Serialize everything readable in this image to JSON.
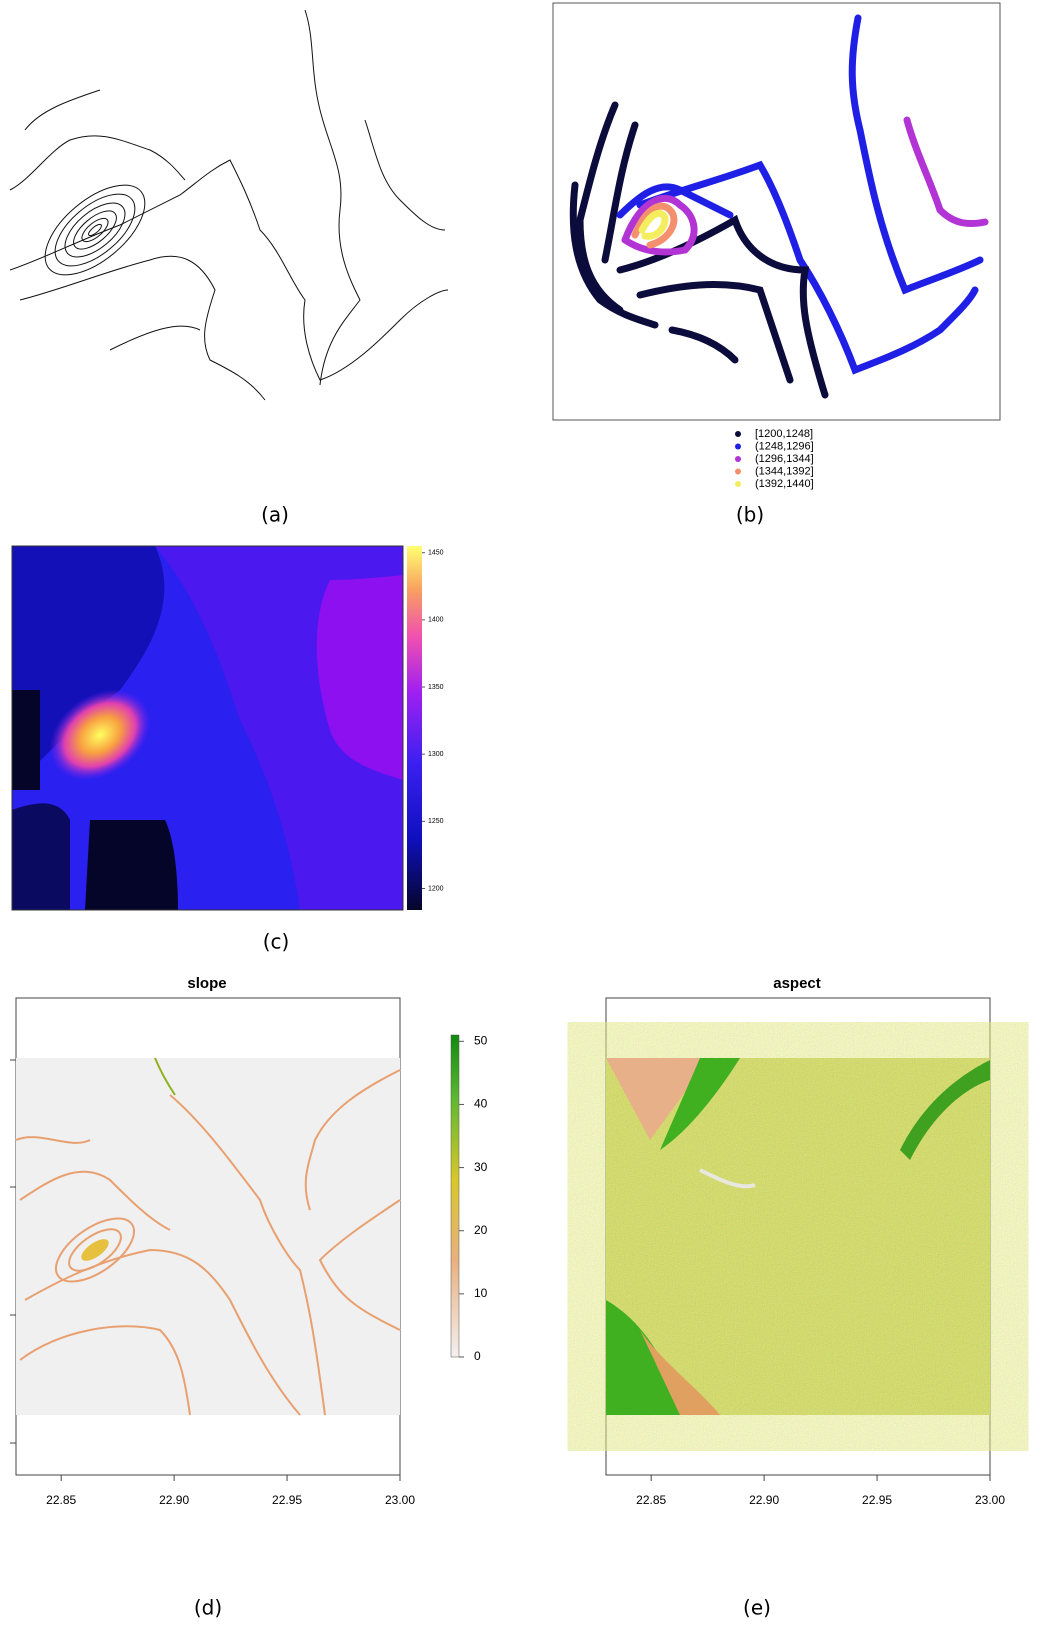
{
  "panels": [
    {
      "label": "(a)"
    },
    {
      "label": "(b)",
      "legend": [
        "[1200,1248]",
        "(1248,1296]",
        "(1296,1344]",
        "(1344,1392]",
        "(1392,1440]"
      ],
      "colors": [
        "#0b0b3c",
        "#1f1fe6",
        "#b234d4",
        "#f4906e",
        "#f4ee5e"
      ]
    },
    {
      "label": "(c)",
      "colorbar": {
        "range": [
          1184,
          1455
        ],
        "ticks": [
          1200,
          1250,
          1300,
          1350,
          1400,
          1450
        ]
      }
    },
    {
      "label": "(d)",
      "title": "slope",
      "xlim": [
        22.83,
        23.0
      ],
      "xticks": [
        22.85,
        {
          "value": 22.9,
          "label": "22.90"
        },
        22.95,
        {
          "value": 23,
          "label": "23.00"
        }
      ],
      "colorbar": {
        "range": [
          0,
          51
        ],
        "ticks": [
          0,
          10,
          20,
          30,
          40,
          50
        ]
      }
    },
    {
      "label": "(e)",
      "title": "aspect",
      "xlim": [
        22.83,
        23.0
      ],
      "xticks": [
        22.85,
        {
          "value": 22.9,
          "label": "22.90"
        },
        22.95,
        {
          "value": 23,
          "label": "23.00"
        }
      ]
    }
  ]
}
